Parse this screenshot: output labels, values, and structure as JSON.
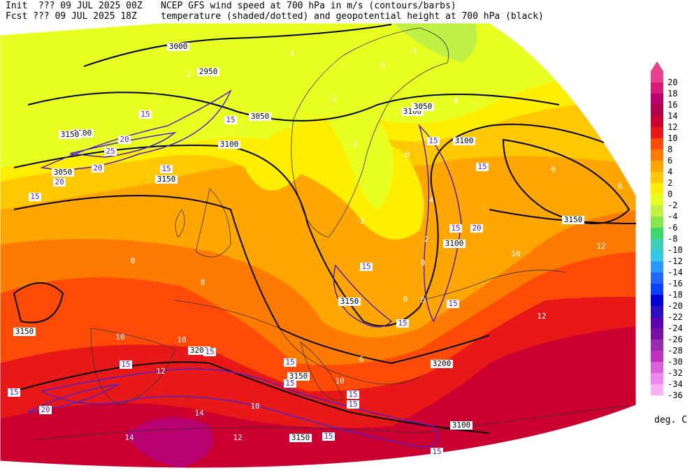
{
  "header": {
    "init_line": "Init  ??? 09 JUL 2025 00Z",
    "fcst_line": "Fcst ??? 09 JUL 2025 18Z",
    "title_line1": "NCEP GFS wind speed at 700 hPa in m/s (contours/barbs)",
    "title_line2": "temperature (shaded/dotted) and geopotential height at 700 hPa (black)"
  },
  "colorbar": {
    "unit": "deg. C",
    "levels": [
      "20",
      "18",
      "16",
      "14",
      "12",
      "10",
      "8",
      "6",
      "4",
      "2",
      "0",
      "-2",
      "-4",
      "-6",
      "-8",
      "-10",
      "-12",
      "-14",
      "-16",
      "-18",
      "-20",
      "-22",
      "-24",
      "-26",
      "-28",
      "-30",
      "-32",
      "-34",
      "-36"
    ],
    "colors": [
      "#e8408c",
      "#d81a78",
      "#b8006e",
      "#b0004a",
      "#cc0030",
      "#e81818",
      "#ff4a08",
      "#ff7a00",
      "#ffa600",
      "#ffc800",
      "#ffee00",
      "#e8ff22",
      "#bff044",
      "#86e84a",
      "#3cd86c",
      "#3ed0b8",
      "#34c8e8",
      "#2a98ff",
      "#2266ff",
      "#1040ff",
      "#0000d8",
      "#2a10c0",
      "#5a00b0",
      "#7a10a8",
      "#9a2cb0",
      "#c030c0",
      "#d860d8",
      "#ee88ee",
      "#f8b0f0"
    ]
  },
  "map_labels": {
    "height_contours": [
      "3000",
      "2950",
      "3050",
      "3100",
      "3050",
      "3100",
      "3150",
      "3100",
      "3050",
      "3150",
      "3100",
      "3100",
      "3150",
      "3200",
      "3150",
      "3200",
      "3150",
      "3100",
      "3150",
      "3150"
    ],
    "wind_speed_contours": [
      "15",
      "15",
      "20",
      "25",
      "20",
      "20",
      "15",
      "15",
      "15",
      "15",
      "15",
      "20",
      "15",
      "15",
      "15",
      "15",
      "15",
      "15",
      "15",
      "15",
      "20",
      "15",
      "15",
      "15",
      "15"
    ],
    "temperature_values": [
      "2",
      "6",
      "8",
      "2",
      "0",
      "-2",
      "0",
      "-2",
      "2",
      "0",
      "4",
      "6",
      "6",
      "8",
      "10",
      "10",
      "12",
      "12",
      "14",
      "10",
      "12",
      "14",
      "12",
      "10",
      "10",
      "6",
      "8",
      "0",
      "-2",
      "-1"
    ]
  }
}
